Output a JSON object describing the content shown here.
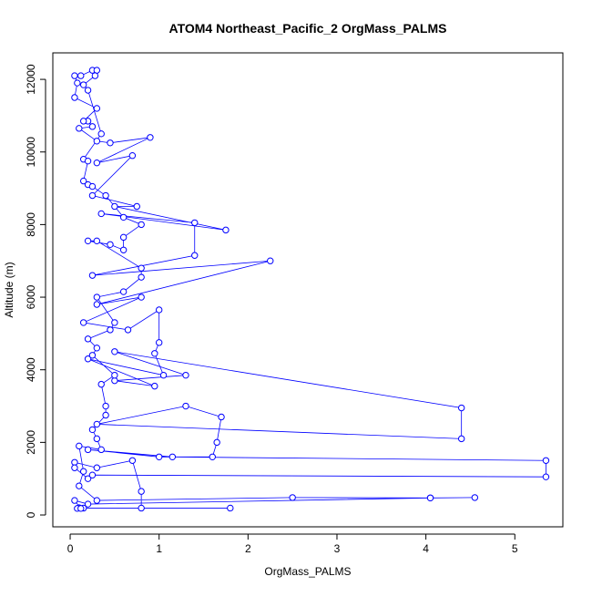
{
  "chart_data": {
    "type": "line",
    "title": "ATOM4 Northeast_Pacific_2 OrgMass_PALMS",
    "x_label": "OrgMass_PALMS",
    "y_label": "Altitude (m)",
    "color": "#0000ff",
    "markers": "circle",
    "x": [
      0.1,
      0.08,
      0.15,
      1.8,
      0.8,
      0.8,
      0.7,
      0.3,
      0.05,
      0.05,
      0.2,
      0.25,
      5.35,
      5.35,
      1.15,
      0.2,
      1.0,
      1.6,
      1.65,
      1.7,
      1.3,
      0.3,
      4.4,
      4.4,
      0.5,
      1.3,
      0.5,
      0.95,
      0.2,
      1.05,
      0.95,
      1.0,
      1.0,
      0.65,
      0.15,
      0.8,
      0.3,
      2.25,
      0.25,
      1.4,
      1.4,
      0.35,
      1.75,
      0.5,
      0.75,
      0.25,
      0.7,
      0.3,
      0.9,
      0.45,
      0.3,
      0.1,
      0.25,
      0.2,
      0.15,
      0.3,
      0.05,
      0.08,
      0.05,
      0.12,
      0.25,
      0.3,
      0.28,
      0.15,
      0.2,
      0.35,
      0.15,
      0.2,
      0.15,
      0.2,
      0.25,
      0.4,
      0.6,
      0.8,
      0.6,
      0.6,
      0.45,
      0.2,
      0.3,
      0.8,
      0.8,
      0.6,
      0.3,
      0.5,
      0.45,
      0.2,
      0.3,
      0.25,
      0.5,
      0.35,
      0.4,
      0.4,
      0.25,
      0.3,
      0.35,
      0.1,
      0.15,
      0.1,
      0.3,
      2.5,
      4.05,
      4.55,
      4.05,
      0.2,
      0.05,
      0.12
    ],
    "values": [
      200,
      180,
      190,
      190,
      190,
      650,
      1500,
      1300,
      1450,
      1300,
      1000,
      1100,
      1050,
      1500,
      1600,
      1800,
      1600,
      1600,
      2000,
      2700,
      3000,
      2500,
      2100,
      2950,
      4500,
      3850,
      3700,
      3550,
      4300,
      3850,
      4450,
      4750,
      5650,
      5100,
      5300,
      6000,
      5800,
      7000,
      6600,
      7150,
      8050,
      8300,
      7850,
      8500,
      8500,
      8800,
      9900,
      9700,
      10400,
      10250,
      10300,
      10650,
      10700,
      10850,
      10850,
      11200,
      11500,
      11900,
      12100,
      12100,
      12250,
      12250,
      12100,
      11850,
      11700,
      10500,
      9800,
      9750,
      9200,
      9100,
      9050,
      8800,
      8200,
      8000,
      7650,
      7300,
      7450,
      7550,
      7550,
      6800,
      6550,
      6150,
      6000,
      5300,
      5100,
      4850,
      4600,
      4400,
      3850,
      3600,
      3000,
      2750,
      2350,
      2100,
      1800,
      1900,
      1200,
      800,
      400,
      480,
      470,
      480,
      470,
      300,
      400,
      180
    ],
    "xlim": [
      -0.195,
      5.54
    ],
    "ylim": [
      -326,
      12730
    ],
    "xticks": [
      0,
      1,
      2,
      3,
      4,
      5
    ],
    "yticks": [
      0,
      2000,
      4000,
      6000,
      8000,
      10000,
      12000
    ]
  }
}
